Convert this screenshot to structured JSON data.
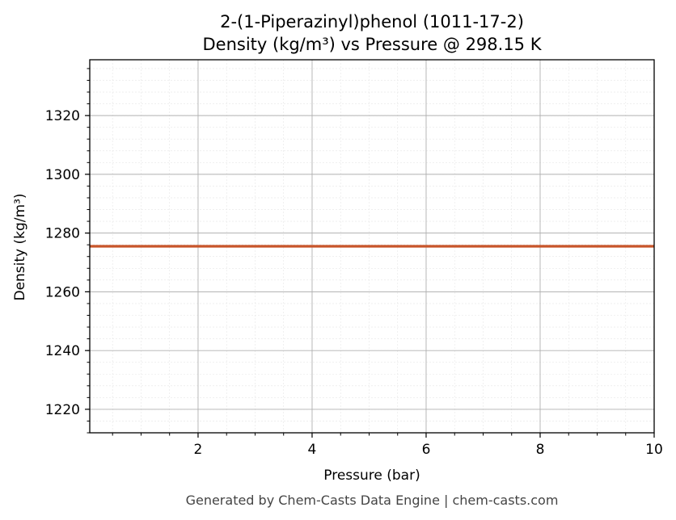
{
  "chart_data": {
    "type": "line",
    "title": "2-(1-Piperazinyl)phenol (1011-17-2)",
    "subtitle": "Density (kg/m³) vs Pressure @ 298.15 K",
    "xlabel": "Pressure (bar)",
    "ylabel": "Density (kg/m³)",
    "xlim": [
      0.1,
      10
    ],
    "ylim": [
      1212,
      1339
    ],
    "xticks": [
      2,
      4,
      6,
      8,
      10
    ],
    "yticks": [
      1220,
      1240,
      1260,
      1280,
      1300,
      1320
    ],
    "grid": true,
    "minor_grid": true,
    "series": [
      {
        "x": [
          0.1,
          1,
          2,
          3,
          4,
          5,
          6,
          7,
          8,
          9,
          10
        ],
        "values": [
          1275.5,
          1275.5,
          1275.5,
          1275.5,
          1275.5,
          1275.5,
          1275.5,
          1275.5,
          1275.5,
          1275.5,
          1275.5
        ],
        "color": "#c8552a"
      }
    ]
  },
  "footer": "Generated by Chem-Casts Data Engine | chem-casts.com"
}
